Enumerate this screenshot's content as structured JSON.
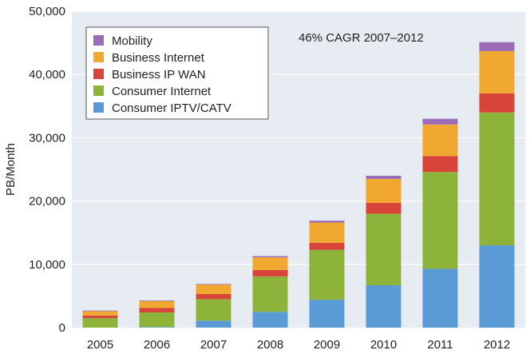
{
  "chart_data": {
    "type": "bar",
    "stacked": true,
    "title": "",
    "annotation": "46% CAGR 2007–2012",
    "xlabel": "",
    "ylabel": "PB/Month",
    "ylim": [
      0,
      50000
    ],
    "yticks": [
      0,
      10000,
      20000,
      30000,
      40000,
      50000
    ],
    "ytick_labels": [
      "0",
      "10,000",
      "20,000",
      "30,000",
      "40,000",
      "50,000"
    ],
    "categories": [
      "2005",
      "2006",
      "2007",
      "2008",
      "2009",
      "2010",
      "2011",
      "2012"
    ],
    "series": [
      {
        "name": "Consumer IPTV/CATV",
        "color": "#5b9bd5",
        "values": [
          0,
          100,
          1100,
          2500,
          4400,
          6700,
          9300,
          13000
        ]
      },
      {
        "name": "Consumer Internet",
        "color": "#8db33a",
        "values": [
          1500,
          2300,
          3400,
          5600,
          7900,
          11300,
          15300,
          21000
        ]
      },
      {
        "name": "Business IP WAN",
        "color": "#d9443a",
        "values": [
          400,
          700,
          800,
          1000,
          1100,
          1700,
          2500,
          3000
        ]
      },
      {
        "name": "Business Internet",
        "color": "#f0a830",
        "values": [
          700,
          1100,
          1500,
          2000,
          3200,
          3800,
          5000,
          6700
        ]
      },
      {
        "name": "Mobility",
        "color": "#9b6bb8",
        "values": [
          100,
          100,
          100,
          200,
          300,
          500,
          900,
          1400
        ]
      }
    ],
    "legend_order": [
      "Mobility",
      "Business Internet",
      "Business IP WAN",
      "Consumer Internet",
      "Consumer IPTV/CATV"
    ],
    "legend_position": "top-left",
    "grid": true,
    "background_color": "#e6ecf1"
  }
}
